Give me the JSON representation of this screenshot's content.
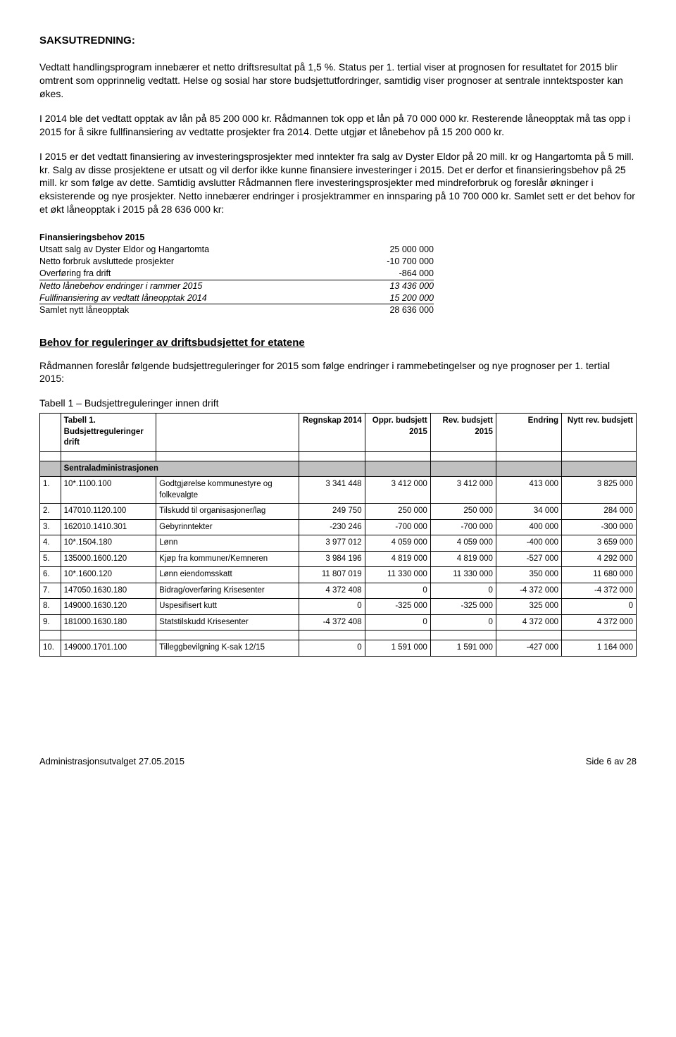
{
  "heading": "SAKSUTREDNING:",
  "paragraphs": [
    "Vedtatt handlingsprogram innebærer et netto driftsresultat på 1,5 %. Status per 1. tertial viser at prognosen for resultatet for 2015 blir omtrent som opprinnelig vedtatt. Helse og sosial har store budsjettutfordringer, samtidig viser prognoser at sentrale inntektsposter kan økes.",
    "I 2014 ble det vedtatt opptak av lån på 85 200 000 kr. Rådmannen tok opp et lån på 70 000 000 kr. Resterende låneopptak må tas opp i 2015 for å sikre fullfinansiering av vedtatte prosjekter fra 2014. Dette utgjør et lånebehov på 15 200 000 kr.",
    "I 2015 er det vedtatt finansiering av investeringsprosjekter med inntekter fra salg av Dyster Eldor på 20 mill. kr og Hangartomta på 5 mill. kr. Salg av disse prosjektene er utsatt og vil derfor ikke kunne finansiere investeringer i 2015. Det er derfor et finansieringsbehov på 25 mill. kr som følge av dette. Samtidig avslutter Rådmannen flere investeringsprosjekter med mindreforbruk og foreslår økninger i eksisterende og nye prosjekter. Netto innebærer endringer i prosjektrammer en innsparing på 10 700 000 kr. Samlet sett er det behov for et økt låneopptak i 2015 på 28 636 000 kr:"
  ],
  "financing": {
    "title": "Finansieringsbehov 2015",
    "rows": [
      {
        "label": "Utsatt salg av Dyster Eldor og Hangartomta",
        "value": "25 000 000",
        "italic": false,
        "underline": false
      },
      {
        "label": "Netto forbruk  avsluttede prosjekter",
        "value": "-10 700 000",
        "italic": false,
        "underline": false
      },
      {
        "label": "Overføring fra drift",
        "value": "-864 000",
        "italic": false,
        "underline": true
      },
      {
        "label": "Netto lånebehov endringer i rammer 2015",
        "value": "13 436 000",
        "italic": true,
        "underline": false
      },
      {
        "label": "Fullfinansiering av vedtatt låneopptak 2014",
        "value": "15 200 000",
        "italic": true,
        "underline": true
      },
      {
        "label": "Samlet nytt låneopptak",
        "value": "28 636 000",
        "italic": false,
        "underline": false
      }
    ]
  },
  "section_title": "Behov for reguleringer av driftsbudsjettet for etatene",
  "intro_regulation": "Rådmannen foreslår følgende budsjettreguleringer for 2015 som følge endringer i rammebetingelser og nye prognoser per 1. tertial 2015:",
  "table_caption": "Tabell 1 – Budsjettreguleringer innen drift",
  "table": {
    "headers": [
      "",
      "Tabell 1. Budsjettreguleringer drift",
      "",
      "Regnskap 2014",
      "Oppr. budsjett 2015",
      "Rev. budsjett 2015",
      "Endring",
      "Nytt rev. budsjett"
    ],
    "section_label": "Sentraladministrasjonen",
    "colwidths": [
      "3.5%",
      "16%",
      "24%",
      "11%",
      "11%",
      "11%",
      "11%",
      "12.5%"
    ],
    "rows": [
      [
        "1.",
        "10*.1100.100",
        "Godtgjørelse kommunestyre og folkevalgte",
        "3 341 448",
        "3 412 000",
        "3 412 000",
        "413 000",
        "3 825 000"
      ],
      [
        "2.",
        "147010.1120.100",
        "Tilskudd til organisasjoner/lag",
        "249 750",
        "250 000",
        "250 000",
        "34 000",
        "284 000"
      ],
      [
        "3.",
        "162010.1410.301",
        "Gebyrinntekter",
        "-230 246",
        "-700 000",
        "-700 000",
        "400 000",
        "-300 000"
      ],
      [
        "4.",
        "10*.1504.180",
        "Lønn",
        "3 977 012",
        "4 059 000",
        "4 059 000",
        "-400 000",
        "3 659 000"
      ],
      [
        "5.",
        "135000.1600.120",
        "Kjøp fra kommuner/Kemneren",
        "3 984 196",
        "4 819 000",
        "4 819 000",
        "-527 000",
        "4 292 000"
      ],
      [
        "6.",
        "10*.1600.120",
        "Lønn eiendomsskatt",
        "11 807 019",
        "11 330 000",
        "11 330 000",
        "350 000",
        "11 680 000"
      ],
      [
        "7.",
        "147050.1630.180",
        "Bidrag/overføring Krisesenter",
        "4 372 408",
        "0",
        "0",
        "-4 372 000",
        "-4 372 000"
      ],
      [
        "8.",
        "149000.1630.120",
        "Uspesifisert kutt",
        "0",
        "-325 000",
        "-325 000",
        "325 000",
        "0"
      ],
      [
        "9.",
        "181000.1630.180",
        "Statstilskudd Krisesenter",
        "-4 372 408",
        "0",
        "0",
        "4 372 000",
        "4 372 000"
      ],
      [
        "",
        "",
        "",
        "",
        "",
        "",
        "",
        ""
      ],
      [
        "10.",
        "149000.1701.100",
        "Tilleggbevilgning K-sak 12/15",
        "0",
        "1 591 000",
        "1 591 000",
        "-427 000",
        "1 164 000"
      ]
    ]
  },
  "footer": {
    "left": "Administrasjonsutvalget 27.05.2015",
    "right": "Side 6 av 28"
  },
  "colors": {
    "section_bg": "#c0c0c0",
    "text": "#000000",
    "bg": "#ffffff"
  }
}
